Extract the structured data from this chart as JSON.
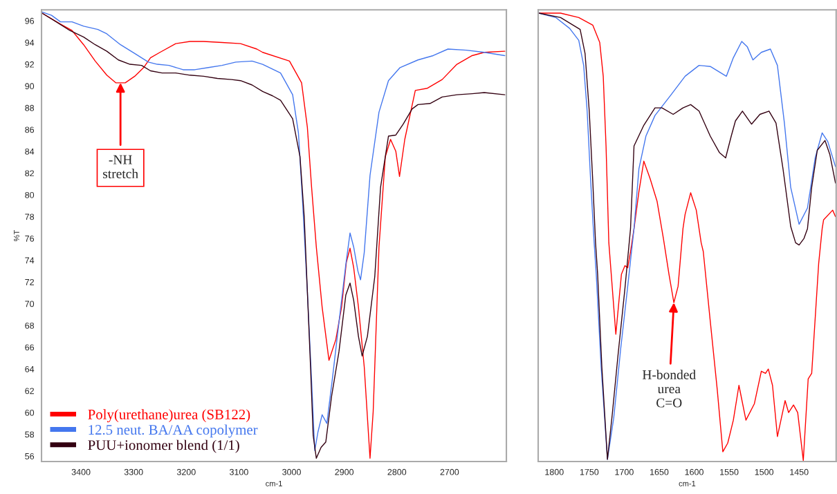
{
  "chart_data": [
    {
      "type": "line",
      "xlabel": "cm-1",
      "ylabel": "%T",
      "xlim": [
        3475,
        2592
      ],
      "ylim": [
        55.5,
        97.0
      ],
      "xticks": [
        3400,
        3300,
        3200,
        3100,
        3000,
        2900,
        2800,
        2700
      ],
      "yticks": [
        56,
        58,
        60,
        62,
        64,
        66,
        68,
        70,
        72,
        74,
        76,
        78,
        80,
        82,
        84,
        86,
        88,
        90,
        92,
        94,
        96
      ],
      "grid": false,
      "legend": "bottom left",
      "marker": "none",
      "line_style": "solid",
      "annotations": [
        {
          "text": "-NH\nstretch",
          "x": 3325,
          "y": 90.3
        }
      ],
      "series": [
        {
          "name": "Poly(urethane)urea (SB122)",
          "color": "#ff0000",
          "x": [
            3474,
            3439,
            3417,
            3395,
            3373,
            3351,
            3334,
            3316,
            3298,
            3281,
            3268,
            3250,
            3220,
            3193,
            3167,
            3132,
            3097,
            3066,
            3055,
            3004,
            2981,
            2970,
            2962,
            2953,
            2942,
            2929,
            2916,
            2905,
            2896,
            2889,
            2882,
            2873,
            2862,
            2853,
            2851,
            2845,
            2834,
            2822,
            2812,
            2802,
            2795,
            2785,
            2765,
            2742,
            2714,
            2686,
            2657,
            2634,
            2595
          ],
          "values": [
            96.7,
            95.7,
            95.1,
            93.8,
            92.3,
            91.0,
            90.3,
            90.3,
            90.9,
            91.7,
            92.6,
            93.1,
            93.9,
            94.1,
            94.1,
            94.0,
            93.9,
            93.4,
            93.1,
            92.3,
            90.3,
            86.2,
            80.7,
            75.2,
            69.7,
            64.8,
            66.7,
            69.7,
            73.8,
            75.1,
            73.3,
            69.7,
            64.2,
            57.3,
            55.8,
            60.1,
            75.2,
            83.5,
            85.1,
            84.0,
            81.7,
            85.1,
            89.6,
            89.8,
            90.6,
            92.0,
            92.8,
            93.1,
            93.2
          ]
        },
        {
          "name": "12.5 neut. BA/AA copolymer",
          "color": "#4477ee",
          "x": [
            3474,
            3456,
            3439,
            3417,
            3395,
            3368,
            3351,
            3325,
            3298,
            3272,
            3255,
            3233,
            3206,
            3184,
            3158,
            3132,
            3106,
            3075,
            3055,
            3021,
            2998,
            2987,
            2979,
            2970,
            2962,
            2956,
            2950,
            2942,
            2933,
            2923,
            2910,
            2897,
            2889,
            2882,
            2874,
            2869,
            2862,
            2851,
            2834,
            2816,
            2794,
            2760,
            2731,
            2703,
            2668,
            2634,
            2595
          ],
          "values": [
            96.8,
            96.5,
            95.9,
            95.9,
            95.5,
            95.2,
            94.8,
            93.8,
            93.0,
            92.2,
            92.0,
            91.9,
            91.5,
            91.5,
            91.7,
            91.9,
            92.2,
            92.3,
            92.0,
            91.2,
            89.2,
            85.7,
            79.3,
            71.1,
            62.9,
            56.5,
            58.2,
            59.8,
            59.0,
            62.9,
            68.3,
            73.6,
            76.5,
            75.2,
            73.0,
            72.2,
            74.7,
            81.8,
            87.6,
            90.5,
            91.7,
            92.4,
            92.8,
            93.4,
            93.3,
            93.1,
            92.8
          ]
        },
        {
          "name": "PUU+ionomer blend (1/1)",
          "color": "#330011",
          "x": [
            3474,
            3447,
            3421,
            3395,
            3373,
            3351,
            3329,
            3307,
            3285,
            3268,
            3246,
            3220,
            3193,
            3167,
            3141,
            3114,
            3097,
            3075,
            3055,
            3036,
            3021,
            2998,
            2984,
            2976,
            2970,
            2964,
            2959,
            2953,
            2944,
            2935,
            2924,
            2910,
            2897,
            2889,
            2882,
            2873,
            2866,
            2856,
            2842,
            2831,
            2816,
            2802,
            2788,
            2771,
            2760,
            2737,
            2714,
            2686,
            2657,
            2634,
            2595
          ],
          "values": [
            96.7,
            95.9,
            95.1,
            94.5,
            93.8,
            93.2,
            92.4,
            92.0,
            91.9,
            91.4,
            91.2,
            91.2,
            91.0,
            90.9,
            90.7,
            90.6,
            90.5,
            90.1,
            89.5,
            89.1,
            88.7,
            87.0,
            83.5,
            78.0,
            71.1,
            64.2,
            57.9,
            55.8,
            56.8,
            57.3,
            61.5,
            65.6,
            70.8,
            71.9,
            70.3,
            67.0,
            65.2,
            67.0,
            72.5,
            80.7,
            85.4,
            85.5,
            86.5,
            87.9,
            88.3,
            88.4,
            89.0,
            89.2,
            89.3,
            89.4,
            89.2
          ]
        }
      ]
    },
    {
      "type": "line",
      "xlabel": "cm-1",
      "xlim": [
        1823,
        1397
      ],
      "ylim": [
        55.5,
        97.0
      ],
      "tick_labels": "x",
      "xticks": [
        1800,
        1750,
        1700,
        1650,
        1600,
        1550,
        1500,
        1450
      ],
      "grid": false,
      "marker": "none",
      "line_style": "solid",
      "annotations": [
        {
          "text": "H-bonded\nurea\nC=O",
          "x": 1629,
          "y": 70.1
        }
      ],
      "series": [
        {
          "color": "#ff0000",
          "x": [
            1822,
            1791,
            1765,
            1745,
            1735,
            1730,
            1726,
            1722,
            1712,
            1704,
            1699,
            1695,
            1691,
            1686,
            1679,
            1672,
            1663,
            1653,
            1644,
            1636,
            1629,
            1623,
            1616,
            1613,
            1605,
            1597,
            1590,
            1587,
            1577,
            1567,
            1559,
            1552,
            1544,
            1536,
            1526,
            1514,
            1504,
            1498,
            1494,
            1488,
            1481,
            1470,
            1465,
            1458,
            1452,
            1444,
            1437,
            1432,
            1422,
            1417,
            1415,
            1402,
            1398
          ],
          "values": [
            96.7,
            96.7,
            96.3,
            95.6,
            94.0,
            90.9,
            84.5,
            75.6,
            67.2,
            72.7,
            73.5,
            73.3,
            74.8,
            76.9,
            80.3,
            83.1,
            81.5,
            79.4,
            76.0,
            72.7,
            70.1,
            71.6,
            76.9,
            78.2,
            80.2,
            78.6,
            75.6,
            74.8,
            68.4,
            62.1,
            56.4,
            57.2,
            59.3,
            62.5,
            59.3,
            60.8,
            63.8,
            63.6,
            64.0,
            62.5,
            57.8,
            61.1,
            60.0,
            60.7,
            60.0,
            55.6,
            63.1,
            63.6,
            73.7,
            76.9,
            77.7,
            78.6,
            78.0
          ]
        },
        {
          "color": "#4477ee",
          "x": [
            1822,
            1798,
            1778,
            1765,
            1758,
            1753,
            1748,
            1743,
            1740,
            1733,
            1724,
            1715,
            1705,
            1695,
            1686,
            1679,
            1669,
            1656,
            1633,
            1613,
            1593,
            1577,
            1554,
            1544,
            1532,
            1524,
            1516,
            1504,
            1491,
            1481,
            1471,
            1462,
            1450,
            1438,
            1427,
            1417,
            1409,
            1398
          ],
          "values": [
            96.7,
            96.3,
            95.3,
            94.2,
            91.9,
            87.7,
            81.3,
            75.6,
            72.7,
            64.2,
            55.7,
            59.5,
            65.9,
            71.6,
            76.9,
            82.4,
            85.4,
            87.3,
            89.2,
            90.9,
            91.9,
            91.8,
            90.9,
            92.6,
            94.1,
            93.6,
            92.4,
            93.1,
            93.4,
            91.9,
            86.6,
            80.7,
            77.3,
            78.8,
            83.4,
            85.7,
            84.9,
            82.6
          ]
        },
        {
          "color": "#330011",
          "x": [
            1822,
            1791,
            1763,
            1756,
            1750,
            1745,
            1741,
            1738,
            1732,
            1724,
            1717,
            1709,
            1699,
            1691,
            1686,
            1672,
            1656,
            1646,
            1630,
            1616,
            1605,
            1593,
            1577,
            1564,
            1555,
            1547,
            1541,
            1531,
            1518,
            1506,
            1493,
            1483,
            1473,
            1462,
            1455,
            1450,
            1443,
            1438,
            1432,
            1424,
            1413,
            1406,
            1398
          ],
          "values": [
            96.7,
            96.3,
            95.2,
            93.0,
            87.7,
            81.3,
            75.6,
            72.7,
            64.2,
            55.7,
            59.9,
            65.2,
            71.4,
            76.9,
            84.5,
            86.4,
            88.0,
            88.0,
            87.4,
            88.0,
            88.3,
            87.7,
            85.4,
            83.9,
            83.4,
            85.4,
            86.8,
            87.7,
            86.5,
            87.4,
            87.7,
            86.6,
            82.4,
            77.1,
            75.6,
            75.4,
            76.0,
            76.9,
            80.7,
            84.1,
            85.0,
            83.7,
            81.1
          ]
        }
      ]
    }
  ]
}
